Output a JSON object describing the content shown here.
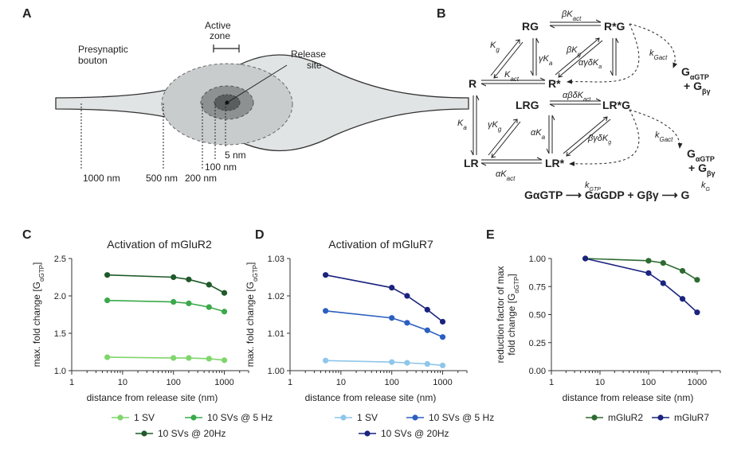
{
  "panels": {
    "A": "A",
    "B": "B",
    "C": "C",
    "D": "D",
    "E": "E"
  },
  "panel_a": {
    "bouton_line1": "Presynaptic",
    "bouton_line2": "bouton",
    "az_line1": "Active",
    "az_line2": "zone",
    "rs_line1": "Release",
    "rs_line2": "site",
    "d5": "5 nm",
    "d100": "100 nm",
    "d200": "200 nm",
    "d500": "500 nm",
    "d1000": "1000 nm"
  },
  "panel_b": {
    "RG": "RG",
    "RstarG": "R*G",
    "R": "R",
    "Rstar": "R*",
    "LRG": "LRG",
    "LRstarG": "LR*G",
    "LR": "LR",
    "LRstar": "LR*",
    "k_bKact": "βK",
    "k_Kg": "K",
    "k_bKg": "βK",
    "k_gKa": "γK",
    "k_agdKa": "αγδK",
    "k_Kact": "K",
    "k_abdKact": "αβδK",
    "k_Ka": "K",
    "k_gKg": "γK",
    "k_aKa": "αK",
    "k_bgdKg": "βγδK",
    "k_aKact": "αK",
    "k_Gact1": "k",
    "k_Gact2": "k",
    "sub_act": "act",
    "sub_g": "g",
    "sub_a": "a",
    "sub_Gact": "Gact",
    "out_G": "G",
    "out_aGTP": "αGTP",
    "out_plus": "+ G",
    "out_bg": "βγ",
    "bottom_GaGTP": "GαGTP",
    "bottom_GaGDP": "GαGDP + Gβγ",
    "bottom_G": "G",
    "k_GTP": "k",
    "sub_GTP": "GTP",
    "k_G": "k",
    "sub_G": "G",
    "arrow": "⟶"
  },
  "axes": {
    "ylabel_prefix": "max. fold change [G",
    "ylabel_sub": "αGTP",
    "ylabel_suffix": "]",
    "xlabel": "distance from release site (nm)",
    "e_ylabel_1": "reduction factor of max",
    "e_ylabel_2_prefix": "fold change [G",
    "e_ylabel_2_suffix": "]"
  },
  "chart_data": [
    {
      "type": "line",
      "title": "Activation of mGluR2",
      "xlabel": "distance from release site (nm)",
      "ylabel": "max. fold change [GαGTP]",
      "xscale": "log",
      "xlim": [
        1,
        3000
      ],
      "ylim": [
        1.0,
        2.5
      ],
      "xticks": [
        "1",
        "10",
        "100",
        "1000"
      ],
      "yticks": [
        "1.0",
        "1.5",
        "2.0",
        "2.5"
      ],
      "legend_position": "bottom",
      "x": [
        5,
        100,
        200,
        500,
        1000
      ],
      "series": [
        {
          "name": "1 SV",
          "color": "#7fd66b",
          "values": [
            1.18,
            1.17,
            1.17,
            1.16,
            1.14
          ]
        },
        {
          "name": "10 SVs @ 5 Hz",
          "color": "#3aa94a",
          "values": [
            1.94,
            1.92,
            1.9,
            1.85,
            1.79
          ]
        },
        {
          "name": "10 SVs @ 20Hz",
          "color": "#1f5a2a",
          "values": [
            2.28,
            2.25,
            2.22,
            2.15,
            2.04
          ]
        }
      ]
    },
    {
      "type": "line",
      "title": "Activation of mGluR7",
      "xlabel": "distance from release site (nm)",
      "ylabel": "max. fold change [GαGTP]",
      "xscale": "log",
      "xlim": [
        1,
        3000
      ],
      "ylim": [
        1.0,
        1.03
      ],
      "xticks": [
        "1",
        "10",
        "100",
        "1000"
      ],
      "yticks": [
        "1.00",
        "1.01",
        "1.02",
        "1.03"
      ],
      "legend_position": "bottom",
      "x": [
        5,
        100,
        200,
        500,
        1000
      ],
      "series": [
        {
          "name": "1 SV",
          "color": "#8ec6ea",
          "values": [
            1.0027,
            1.0023,
            1.0021,
            1.0018,
            1.0014
          ]
        },
        {
          "name": "10 SVs @ 5 Hz",
          "color": "#2b5fc0",
          "values": [
            1.016,
            1.0141,
            1.0128,
            1.0108,
            1.009
          ]
        },
        {
          "name": "10 SVs @ 20Hz",
          "color": "#1a237e",
          "values": [
            1.0256,
            1.0222,
            1.02,
            1.0163,
            1.0131
          ]
        }
      ]
    },
    {
      "type": "line",
      "title": "",
      "xlabel": "distance from release site (nm)",
      "ylabel": "reduction factor of max fold change [GαGTP]",
      "xscale": "log",
      "xlim": [
        1,
        3000
      ],
      "ylim": [
        0.0,
        1.0
      ],
      "xticks": [
        "1",
        "10",
        "100",
        "1000"
      ],
      "yticks": [
        "0.00",
        "0.25",
        "0.50",
        "0.75",
        "1.00"
      ],
      "legend_position": "bottom",
      "x": [
        5,
        100,
        200,
        500,
        1000
      ],
      "series": [
        {
          "name": "mGluR2",
          "color": "#2e6b31",
          "values": [
            1.0,
            0.98,
            0.96,
            0.89,
            0.81
          ]
        },
        {
          "name": "mGluR7",
          "color": "#1a237e",
          "values": [
            1.0,
            0.87,
            0.78,
            0.64,
            0.52
          ]
        }
      ]
    }
  ]
}
